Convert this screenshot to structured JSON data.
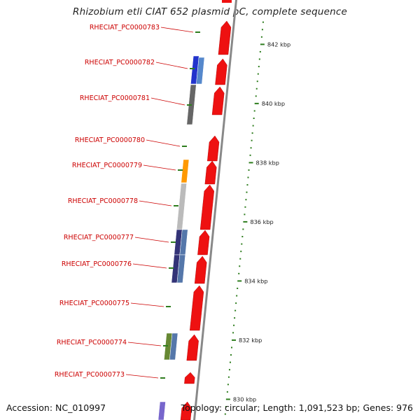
{
  "title": "Rhizobium etli CIAT 652 plasmid pC, complete sequence",
  "footer": {
    "accession": "Accession: NC_010997",
    "summary": "Topology: circular; Length: 1,091,523 bp; Genes: 976"
  },
  "scale": {
    "unit": "kbp",
    "min_kbp": 829.3,
    "max_kbp": 843.5,
    "major_labels": [
      830,
      832,
      834,
      836,
      838,
      840,
      842
    ],
    "tick_color": "#2e7d1e"
  },
  "gene_labels": [
    "RHECIAT_PC0000783",
    "RHECIAT_PC0000782",
    "RHECIAT_PC0000781",
    "RHECIAT_PC0000780",
    "RHECIAT_PC0000779",
    "RHECIAT_PC0000778",
    "RHECIAT_PC0000777",
    "RHECIAT_PC0000776",
    "RHECIAT_PC0000775",
    "RHECIAT_PC0000774",
    "RHECIAT_PC0000773"
  ],
  "colors": {
    "gene": "#ee1111",
    "backbone": "#888888",
    "label": "#cc0000",
    "cog_blue": "#2233cc",
    "cog_lightblue": "#5588cc",
    "cog_darkgray": "#666666",
    "cog_orange": "#ff9900",
    "cog_lightgray": "#bbbbbb",
    "cog_navy": "#333377",
    "cog_steel": "#5577aa",
    "cog_olive": "#668833",
    "cog_lavender": "#7766cc"
  }
}
